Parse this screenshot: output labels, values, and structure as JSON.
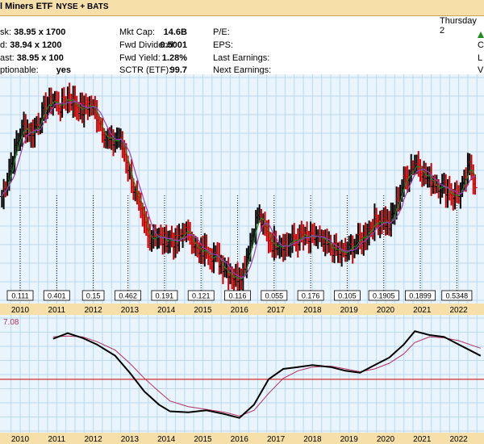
{
  "header": {
    "title_fragment": "l Miners ETF",
    "exchange": "NYSE + BATS",
    "day": "Thursday 2"
  },
  "stats": {
    "col1": [
      {
        "label": "sk:",
        "value": "38.95 x 1700"
      },
      {
        "label": "d:",
        "value": "38.94 x 1200"
      },
      {
        "label": "ast:",
        "value": "38.95 x 100"
      },
      {
        "label": "ptionable:",
        "value": "yes"
      }
    ],
    "col2": [
      {
        "label": "Mkt Cap:",
        "value": "14.6B"
      },
      {
        "label": "Fwd Dividend:",
        "value": "0.5001"
      },
      {
        "label": "Fwd Yield:",
        "value": "1.28%"
      },
      {
        "label": "SCTR (ETF):",
        "value": "99.7"
      }
    ],
    "col3": [
      {
        "label": "P/E:"
      },
      {
        "label": "EPS:"
      },
      {
        "label": "Last Earnings:"
      },
      {
        "label": "Next Earnings:"
      }
    ],
    "col4": [
      "C",
      "L",
      "V"
    ]
  },
  "colors": {
    "up": "#000000",
    "down": "#cc0000",
    "ma_fast": "#1f8a1f",
    "ma_slow": "#9a3fc0",
    "grid": "#b9d9ef",
    "background": "#eaf4fc",
    "signal_line": "#b03060",
    "hline": "#cc0000",
    "axis_band": "#f6dfa8"
  },
  "chart_data": [
    {
      "type": "candlestick",
      "x_ticks": [
        "2010",
        "2011",
        "2012",
        "2013",
        "2014",
        "2015",
        "2016",
        "2017",
        "2018",
        "2019",
        "2020",
        "2021",
        "2022"
      ],
      "ylim": [
        10,
        70
      ],
      "dividends": [
        {
          "date": 2010.0,
          "label": "0.111"
        },
        {
          "date": 2011.0,
          "label": "0.401"
        },
        {
          "date": 2012.0,
          "label": "0.15"
        },
        {
          "date": 2012.95,
          "label": "0.462"
        },
        {
          "date": 2013.95,
          "label": "0.191"
        },
        {
          "date": 2014.95,
          "label": "0.121"
        },
        {
          "date": 2015.95,
          "label": "0.116"
        },
        {
          "date": 2016.95,
          "label": "0.055"
        },
        {
          "date": 2017.95,
          "label": "0.176"
        },
        {
          "date": 2018.95,
          "label": "0.105"
        },
        {
          "date": 2019.95,
          "label": "0.1905"
        },
        {
          "date": 2020.95,
          "label": "0.1899"
        },
        {
          "date": 2021.95,
          "label": "0.5348"
        }
      ],
      "series": [
        {
          "points": [
            [
              2009.5,
              38
            ],
            [
              2009.7,
              45
            ],
            [
              2009.9,
              52
            ],
            [
              2010.1,
              57
            ],
            [
              2010.3,
              55
            ],
            [
              2010.5,
              58
            ],
            [
              2010.7,
              62
            ],
            [
              2010.9,
              64
            ],
            [
              2011.1,
              62
            ],
            [
              2011.3,
              65
            ],
            [
              2011.5,
              63
            ],
            [
              2011.7,
              61
            ],
            [
              2011.9,
              63
            ],
            [
              2012.1,
              60
            ],
            [
              2012.3,
              55
            ],
            [
              2012.5,
              52
            ],
            [
              2012.7,
              54
            ],
            [
              2012.9,
              48
            ],
            [
              2013.1,
              40
            ],
            [
              2013.3,
              33
            ],
            [
              2013.5,
              27
            ],
            [
              2013.7,
              28
            ],
            [
              2013.9,
              26
            ],
            [
              2014.1,
              27
            ],
            [
              2014.3,
              25
            ],
            [
              2014.5,
              29
            ],
            [
              2014.7,
              27
            ],
            [
              2014.9,
              22
            ],
            [
              2015.1,
              24
            ],
            [
              2015.3,
              22
            ],
            [
              2015.5,
              20
            ],
            [
              2015.7,
              18
            ],
            [
              2015.9,
              16
            ],
            [
              2016.1,
              18
            ],
            [
              2016.3,
              26
            ],
            [
              2016.5,
              33
            ],
            [
              2016.7,
              29
            ],
            [
              2016.9,
              25
            ],
            [
              2017.1,
              26
            ],
            [
              2017.3,
              25
            ],
            [
              2017.5,
              26
            ],
            [
              2017.7,
              27
            ],
            [
              2017.9,
              26
            ],
            [
              2018.1,
              27
            ],
            [
              2018.3,
              25
            ],
            [
              2018.5,
              24
            ],
            [
              2018.7,
              23
            ],
            [
              2018.9,
              22
            ],
            [
              2019.1,
              25
            ],
            [
              2019.3,
              26
            ],
            [
              2019.5,
              29
            ],
            [
              2019.7,
              31
            ],
            [
              2019.9,
              32
            ],
            [
              2020.1,
              30
            ],
            [
              2020.3,
              36
            ],
            [
              2020.5,
              42
            ],
            [
              2020.7,
              46
            ],
            [
              2020.9,
              47
            ],
            [
              2021.1,
              43
            ],
            [
              2021.3,
              42
            ],
            [
              2021.5,
              41
            ],
            [
              2021.7,
              40
            ],
            [
              2021.9,
              38
            ],
            [
              2022.1,
              40
            ],
            [
              2022.3,
              46
            ],
            [
              2022.5,
              40
            ]
          ]
        }
      ]
    },
    {
      "type": "line",
      "x_ticks": [
        "2010",
        "2011",
        "2012",
        "2013",
        "2014",
        "2015",
        "2016",
        "2017",
        "2018",
        "2019",
        "2020",
        "2021",
        "2022"
      ],
      "ylim": [
        0,
        120
      ],
      "y_label_left": "7.08",
      "hline": 55,
      "series": [
        {
          "points": [
            [
              2010.9,
              98
            ],
            [
              2011.3,
              104
            ],
            [
              2011.7,
              99
            ],
            [
              2012.1,
              92
            ],
            [
              2012.6,
              80
            ],
            [
              2013.0,
              62
            ],
            [
              2013.4,
              42
            ],
            [
              2013.8,
              28
            ],
            [
              2014.1,
              21
            ],
            [
              2014.6,
              20
            ],
            [
              2015.1,
              22
            ],
            [
              2015.6,
              18
            ],
            [
              2016.0,
              14
            ],
            [
              2016.4,
              28
            ],
            [
              2016.8,
              55
            ],
            [
              2017.2,
              66
            ],
            [
              2017.6,
              68
            ],
            [
              2018.0,
              70
            ],
            [
              2018.5,
              68
            ],
            [
              2018.9,
              64
            ],
            [
              2019.3,
              62
            ],
            [
              2019.7,
              70
            ],
            [
              2020.1,
              78
            ],
            [
              2020.5,
              92
            ],
            [
              2020.8,
              106
            ],
            [
              2021.2,
              102
            ],
            [
              2021.6,
              100
            ],
            [
              2022.0,
              92
            ],
            [
              2022.3,
              86
            ],
            [
              2022.6,
              80
            ]
          ]
        },
        {
          "points": [
            [
              2010.9,
              100
            ],
            [
              2011.3,
              101
            ],
            [
              2011.7,
              100
            ],
            [
              2012.1,
              95
            ],
            [
              2012.6,
              86
            ],
            [
              2013.0,
              72
            ],
            [
              2013.4,
              56
            ],
            [
              2013.8,
              42
            ],
            [
              2014.1,
              32
            ],
            [
              2014.6,
              26
            ],
            [
              2015.1,
              23
            ],
            [
              2015.6,
              20
            ],
            [
              2016.0,
              16
            ],
            [
              2016.4,
              22
            ],
            [
              2016.8,
              40
            ],
            [
              2017.2,
              56
            ],
            [
              2017.6,
              64
            ],
            [
              2018.0,
              68
            ],
            [
              2018.5,
              69
            ],
            [
              2018.9,
              66
            ],
            [
              2019.3,
              63
            ],
            [
              2019.7,
              66
            ],
            [
              2020.1,
              72
            ],
            [
              2020.5,
              82
            ],
            [
              2020.8,
              94
            ],
            [
              2021.2,
              100
            ],
            [
              2021.6,
              99
            ],
            [
              2022.0,
              96
            ],
            [
              2022.3,
              92
            ],
            [
              2022.6,
              88
            ]
          ]
        }
      ]
    }
  ]
}
